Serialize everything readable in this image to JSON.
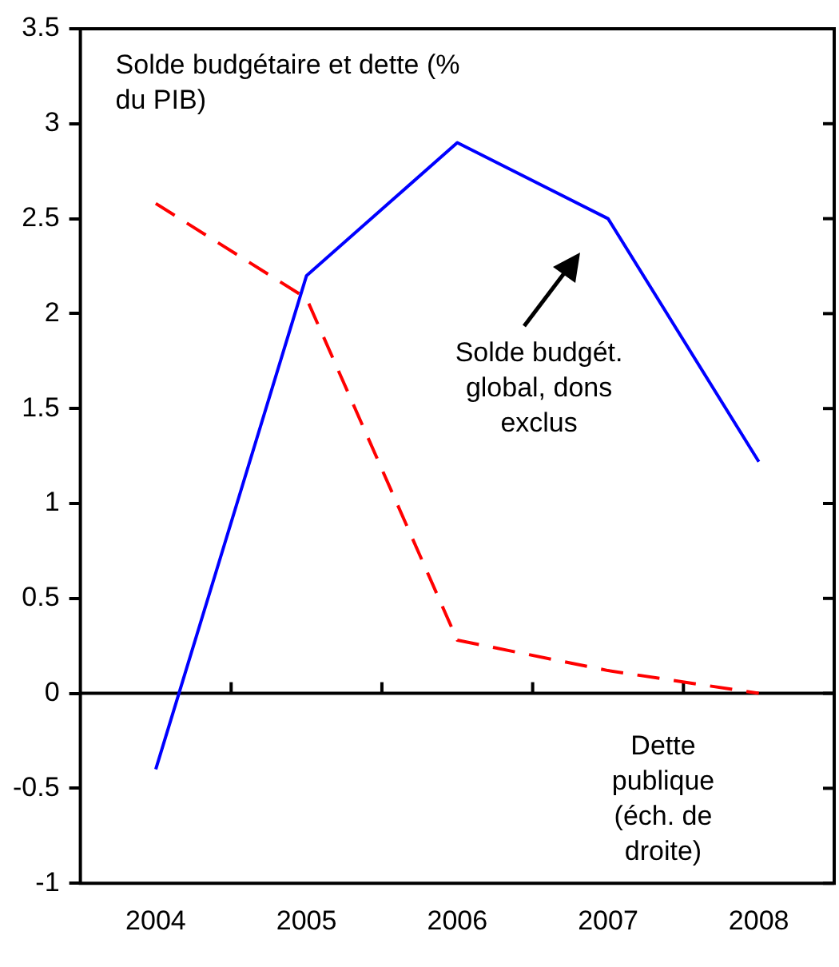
{
  "chart_data": {
    "type": "line",
    "title": "Solde budgétaire et dette (% du PIB)",
    "categories": [
      "2004",
      "2005",
      "2006",
      "2007",
      "2008"
    ],
    "series": [
      {
        "color": "#0000ff",
        "values": [
          -0.4,
          2.2,
          2.9,
          2.5,
          1.22
        ],
        "line_style": "solid"
      },
      {
        "color": "#ff0000",
        "values": [
          2.58,
          2.08,
          0.28,
          0.12,
          0.0
        ],
        "line_style": "dashed"
      }
    ],
    "ylim": [
      -1,
      3.5
    ],
    "yticks": [
      -1,
      -0.5,
      0,
      0.5,
      1,
      1.5,
      2,
      2.5,
      3,
      3.5
    ],
    "ref_lines": [
      {
        "axis": "y",
        "value": 0,
        "color": "#000000",
        "line_style": "solid"
      }
    ],
    "annotations": [
      "Solde budgét. global, dons exclus",
      "Dette publique (éch. de droite)"
    ],
    "marker": "none",
    "legend": false
  }
}
